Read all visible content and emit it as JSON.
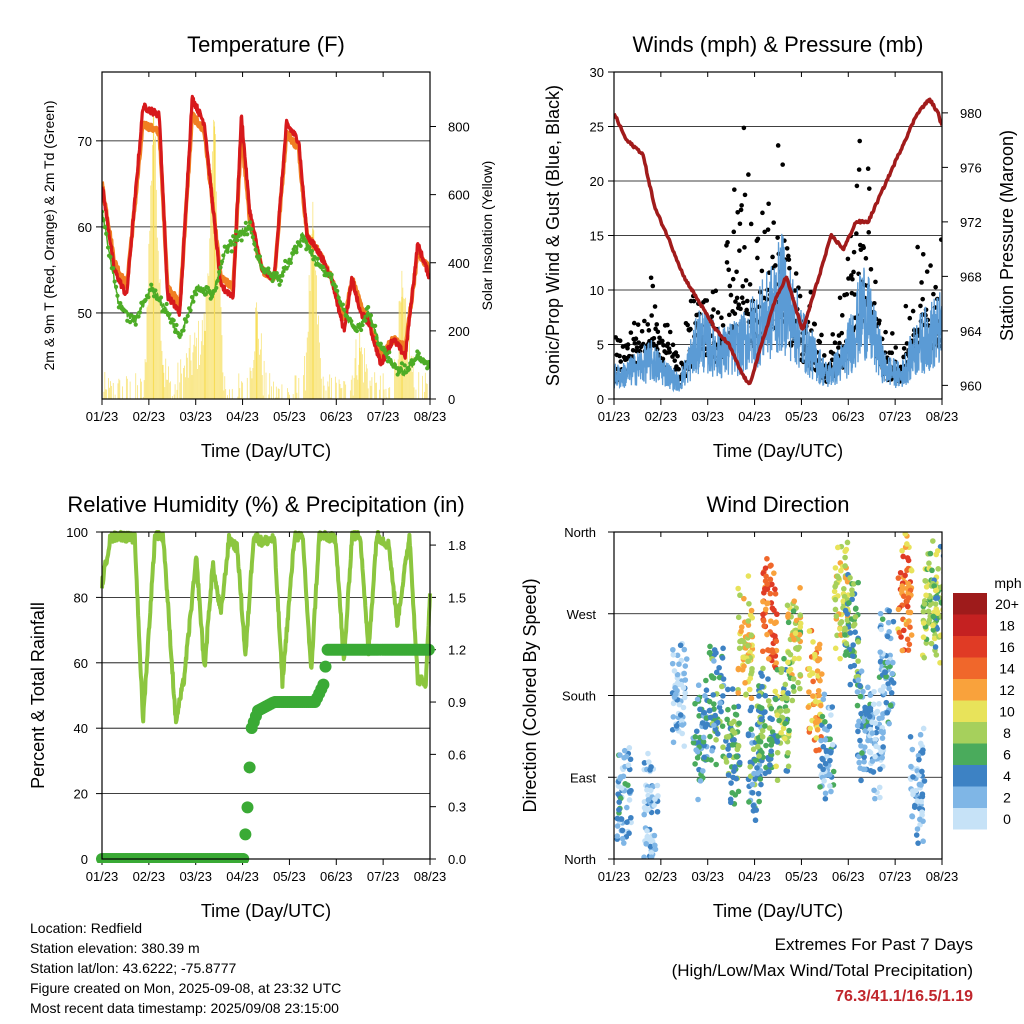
{
  "chart_data": [
    {
      "id": "temp",
      "type": "line",
      "title": "Temperature (F)",
      "xlabel": "Time (Day/UTC)",
      "ylabel": "2m & 9m T (Red, Orange) & 2m Td (Green)",
      "y2label": "Solar Insolation (Yellow)",
      "x_ticks": [
        "01/23",
        "02/23",
        "03/23",
        "04/23",
        "05/23",
        "06/23",
        "07/23",
        "08/23"
      ],
      "ylim": [
        40,
        78
      ],
      "y_ticks": [
        50,
        60,
        70
      ],
      "y2lim": [
        0,
        960
      ],
      "y2_ticks": [
        0,
        200,
        400,
        600,
        800
      ],
      "grid": true,
      "colors": {
        "t2m": "#d7191c",
        "t9m": "#f07f22",
        "td": "#4dac26",
        "solar": "#f7de5a"
      },
      "series": [
        {
          "name": "2m T",
          "x": [
            0,
            0.3,
            0.6,
            1.0,
            1.4,
            1.6,
            1.9,
            2.2,
            2.5,
            2.9,
            3.2,
            3.4,
            3.6,
            3.9,
            4.2,
            4.5,
            4.8,
            5.0,
            5.3,
            5.6,
            5.9,
            6.1,
            6.3,
            6.5,
            6.8,
            7.1,
            7.4,
            7.7,
            8.0
          ],
          "values": [
            65,
            55,
            52,
            74,
            73,
            52,
            50,
            75,
            72,
            53,
            52,
            73,
            62,
            55,
            54,
            72,
            70,
            59,
            57,
            54,
            48,
            54,
            50,
            49,
            44,
            47,
            45,
            58,
            54
          ]
        },
        {
          "name": "9m T",
          "x": [
            0,
            0.3,
            0.6,
            1.0,
            1.4,
            1.6,
            1.9,
            2.2,
            2.5,
            2.9,
            3.2,
            3.4,
            3.6,
            3.9,
            4.2,
            4.5,
            4.8,
            5.0,
            5.3,
            5.6,
            5.9,
            6.1,
            6.3,
            6.5,
            6.8,
            7.1,
            7.4,
            7.7,
            8.0
          ],
          "values": [
            65,
            56,
            53,
            72,
            71,
            53,
            51,
            73,
            71,
            54,
            53,
            71,
            61,
            55,
            54,
            71,
            69,
            59,
            57,
            54,
            49,
            54,
            51,
            49,
            45,
            47,
            46,
            57,
            55
          ]
        },
        {
          "name": "2m Td",
          "x": [
            0,
            0.4,
            0.8,
            1.2,
            1.6,
            1.9,
            2.3,
            2.7,
            3.0,
            3.3,
            3.6,
            3.9,
            4.3,
            4.6,
            4.9,
            5.2,
            5.6,
            5.9,
            6.2,
            6.5,
            6.8,
            7.1,
            7.4,
            7.7,
            8.0
          ],
          "values": [
            62,
            51,
            49,
            53,
            50,
            47,
            53,
            52,
            57,
            59,
            60,
            55,
            54,
            56,
            59,
            56,
            54,
            50,
            48,
            50,
            46,
            44,
            43,
            45,
            44
          ]
        },
        {
          "name": "Solar",
          "y_axis": "right",
          "x": [
            0.9,
            1.1,
            1.3,
            1.5,
            2.2,
            2.4,
            2.6,
            3.1,
            3.3,
            3.5,
            4.3,
            4.5,
            4.7,
            5.2,
            5.5,
            5.8,
            6.2,
            6.4,
            6.7,
            7.1,
            7.5,
            7.7,
            7.8
          ],
          "values": [
            0,
            850,
            100,
            0,
            200,
            800,
            0,
            0,
            250,
            0,
            0,
            500,
            0,
            0,
            150,
            0,
            0,
            300,
            0,
            0,
            0,
            870,
            0
          ]
        }
      ]
    },
    {
      "id": "wind",
      "type": "scatter",
      "title": "Winds (mph) & Pressure (mb)",
      "xlabel": "Time (Day/UTC)",
      "ylabel": "Sonic/Prop Wind & Gust (Blue, Black)",
      "y2label": "Station Pressure (Maroon)",
      "x_ticks": [
        "01/23",
        "02/23",
        "03/23",
        "04/23",
        "05/23",
        "06/23",
        "07/23",
        "08/23"
      ],
      "ylim": [
        0,
        30
      ],
      "y_ticks": [
        0,
        5,
        10,
        15,
        20,
        25,
        30
      ],
      "y2lim": [
        959,
        983
      ],
      "y2_ticks": [
        960,
        964,
        968,
        972,
        976,
        980
      ],
      "grid": true,
      "colors": {
        "wind": "#5b9bd5",
        "gust": "#000000",
        "pressure": "#a11b1b"
      },
      "series": [
        {
          "name": "Pressure",
          "y_axis": "right",
          "x": [
            0,
            0.3,
            0.7,
            1.0,
            1.3,
            1.7,
            2.1,
            2.5,
            2.8,
            3.1,
            3.3,
            3.6,
            3.9,
            4.2,
            4.6,
            4.9,
            5.3,
            5.6,
            5.9,
            6.2,
            6.5,
            6.8,
            7.1,
            7.4,
            7.7,
            7.9,
            8.0
          ],
          "values": [
            980,
            978,
            977,
            973,
            971,
            968,
            966,
            964,
            963,
            961,
            960,
            963,
            966,
            968,
            964,
            967,
            971,
            970,
            972,
            972,
            974,
            976,
            978,
            980,
            981,
            980,
            979
          ]
        },
        {
          "name": "Wind peaks",
          "x": [
            0.2,
            0.9,
            1.6,
            2.1,
            2.6,
            3.1,
            3.4,
            3.8,
            4.1,
            4.4,
            4.8,
            5.2,
            5.6,
            6.1,
            6.6,
            7.0,
            7.4,
            7.9
          ],
          "values": [
            3,
            5,
            2,
            8,
            6,
            7,
            9,
            11,
            14,
            10,
            6,
            3,
            5,
            12,
            4,
            3,
            7,
            9
          ]
        },
        {
          "name": "Gust peaks",
          "x": [
            0.2,
            0.9,
            1.6,
            2.1,
            2.6,
            3.1,
            3.4,
            3.8,
            4.1,
            4.4,
            4.8,
            5.2,
            5.6,
            6.1,
            6.6,
            7.0,
            7.4,
            7.9
          ],
          "values": [
            5,
            13,
            4,
            15,
            10,
            28,
            16,
            21,
            25,
            14,
            10,
            5,
            11,
            29,
            6,
            4,
            17,
            16
          ]
        }
      ]
    },
    {
      "id": "rh",
      "type": "line",
      "title": "Relative Humidity (%) & Precipitation (in)",
      "xlabel": "Time (Day/UTC)",
      "ylabel": "Percent & Total Rainfall",
      "x_ticks": [
        "01/23",
        "02/23",
        "03/23",
        "04/23",
        "05/23",
        "06/23",
        "07/23",
        "08/23"
      ],
      "ylim": [
        0,
        100
      ],
      "y_ticks": [
        0,
        20,
        40,
        60,
        80,
        100
      ],
      "y2lim": [
        0,
        1.875
      ],
      "y2_ticks": [
        "0.0",
        "0.3",
        "0.6",
        "0.9",
        "1.2",
        "1.5",
        "1.8"
      ],
      "grid": true,
      "colors": {
        "rh": "#8cc63f",
        "precip": "#3aaa35"
      },
      "series": [
        {
          "name": "RH",
          "x": [
            0,
            0.2,
            0.4,
            0.8,
            1.0,
            1.3,
            1.5,
            1.8,
            2.0,
            2.3,
            2.5,
            2.7,
            2.9,
            3.1,
            3.3,
            3.5,
            3.7,
            3.9,
            4.2,
            4.4,
            4.7,
            4.9,
            5.1,
            5.3,
            5.7,
            5.9,
            6.1,
            6.3,
            6.5,
            6.7,
            7.0,
            7.2,
            7.5,
            7.7,
            7.9,
            8.0
          ],
          "values": [
            84,
            98,
            99,
            98,
            42,
            100,
            98,
            42,
            55,
            92,
            58,
            90,
            75,
            98,
            95,
            62,
            99,
            97,
            98,
            54,
            99,
            98,
            57,
            99,
            98,
            60,
            99,
            99,
            63,
            99,
            96,
            72,
            99,
            55,
            54,
            82
          ]
        },
        {
          "name": "Precipitation",
          "y_axis": "right",
          "x": [
            0,
            1,
            2,
            3.1,
            3.45,
            3.55,
            3.65,
            3.8,
            4.2,
            4.6,
            5.2,
            5.4,
            5.5,
            5.7,
            6.0,
            7.0,
            8.0
          ],
          "values": [
            0,
            0,
            0,
            0,
            0,
            0.3,
            0.75,
            0.85,
            0.9,
            0.9,
            0.9,
            1.0,
            1.2,
            1.2,
            1.2,
            1.2,
            1.2
          ]
        }
      ]
    },
    {
      "id": "dir",
      "type": "scatter",
      "title": "Wind Direction",
      "xlabel": "Time (Day/UTC)",
      "ylabel": "Direction (Colored By Speed)",
      "x_ticks": [
        "01/23",
        "02/23",
        "03/23",
        "04/23",
        "05/23",
        "06/23",
        "07/23",
        "08/23"
      ],
      "y_ticks": [
        "North",
        "East",
        "South",
        "West",
        "North"
      ],
      "ylim": [
        0,
        360
      ],
      "grid": true,
      "legend": {
        "title": "mph",
        "position": "right",
        "labels": [
          "20+",
          "18",
          "16",
          "14",
          "12",
          "10",
          "8",
          "6",
          "4",
          "2",
          "0"
        ],
        "colors": [
          "#9e1b1b",
          "#c42121",
          "#e03b25",
          "#f0672b",
          "#f9a23c",
          "#e8e35a",
          "#a6d05c",
          "#4aab5c",
          "#3d82c4",
          "#7fb6e6",
          "#c6e2f7"
        ]
      },
      "series": [
        {
          "name": "clusters",
          "x": [
            0.25,
            0.9,
            1.6,
            2.1,
            2.5,
            2.9,
            3.2,
            3.45,
            3.7,
            3.8,
            4.1,
            4.4,
            4.9,
            5.2,
            5.55,
            5.8,
            6.1,
            6.4,
            6.65,
            7.1,
            7.4,
            7.7,
            7.95
          ],
          "values": [
            70,
            50,
            180,
            135,
            170,
            120,
            240,
            110,
            140,
            270,
            160,
            235,
            185,
            120,
            290,
            245,
            150,
            120,
            210,
            300,
            80,
            280,
            285
          ],
          "speed": [
            3,
            1,
            1,
            4,
            5,
            6,
            10,
            5,
            6,
            14,
            7,
            9,
            12,
            3,
            10,
            6,
            4,
            2,
            3,
            13,
            2,
            8,
            7
          ]
        }
      ]
    }
  ],
  "info": {
    "location": "Location: Redfield",
    "elevation": "Station elevation: 380.39 m",
    "latlon": "Station lat/lon: 43.6222; -75.8777",
    "created": "Figure created on Mon, 2025-09-08, at 23:32 UTC",
    "latest": "Most recent data timestamp: 2025/09/08 23:15:00"
  },
  "extremes": {
    "heading": "Extremes For Past 7 Days",
    "subheading": "(High/Low/Max Wind/Total Precipitation)",
    "values": "76.3/41.1/16.5/1.19"
  }
}
